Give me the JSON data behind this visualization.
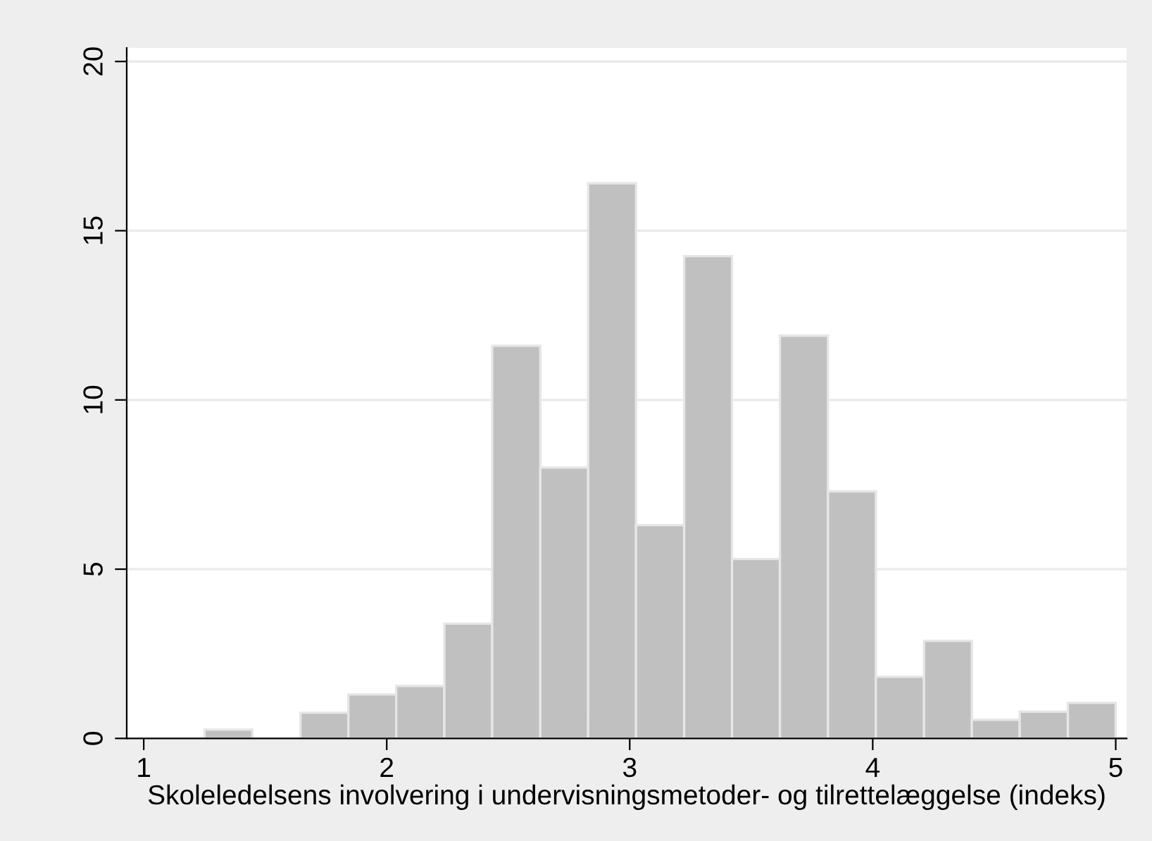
{
  "chart_data": {
    "type": "histogram",
    "xlabel": "Skoleledelsens involvering i undervisningsmetoder- og tilrettelæggelse (indeks)",
    "bins": [
      1.25,
      1.447,
      1.645,
      1.842,
      2.039,
      2.237,
      2.434,
      2.632,
      2.829,
      3.026,
      3.224,
      3.421,
      3.618,
      3.816,
      4.013,
      4.211,
      4.408,
      4.605,
      4.803,
      5.0
    ],
    "values": [
      0.26,
      0,
      0.76,
      1.3,
      1.55,
      3.39,
      11.6,
      8.0,
      16.4,
      6.3,
      14.25,
      5.3,
      11.9,
      7.3,
      1.82,
      2.88,
      0.55,
      0.79,
      1.05
    ],
    "color": "#c0c0c0",
    "xlim": [
      0.93,
      5.045
    ],
    "ylim": [
      0,
      20.4
    ],
    "xticks": [
      1,
      2,
      3,
      4,
      5
    ],
    "yticks": [
      0,
      5,
      10,
      15,
      20
    ],
    "grid": "y"
  }
}
